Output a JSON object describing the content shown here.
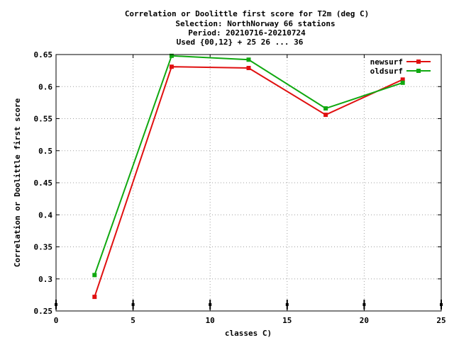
{
  "chart_data": {
    "type": "line",
    "title_lines": [
      "Correlation or Doolittle first score  for T2m (deg C)",
      "Selection: NorthNorway     66 stations",
      "Period: 20210716-20210724",
      "Used {00,12} + 25 26 ... 36"
    ],
    "xlabel": "classes C)",
    "ylabel": "Correlation or Doolittle first score",
    "xlim": [
      0,
      25
    ],
    "ylim": [
      0.25,
      0.65
    ],
    "x_ticks": [
      "0",
      "5",
      "10",
      "15",
      "20",
      "25"
    ],
    "y_ticks": [
      "0.25",
      "0.3",
      "0.35",
      "0.4",
      "0.45",
      "0.5",
      "0.55",
      "0.6",
      "0.65"
    ],
    "grid": true,
    "legend_position": "top-right",
    "x": [
      2.5,
      7.5,
      12.5,
      17.5,
      22.5
    ],
    "series": [
      {
        "name": "newsurf",
        "color": "#e01010",
        "values": [
          0.272,
          0.631,
          0.629,
          0.556,
          0.611
        ]
      },
      {
        "name": "oldsurf",
        "color": "#10a810",
        "values": [
          0.306,
          0.648,
          0.642,
          0.566,
          0.606
        ]
      }
    ],
    "baseline_markers_x": [
      0,
      5,
      10,
      15,
      20,
      25
    ]
  }
}
